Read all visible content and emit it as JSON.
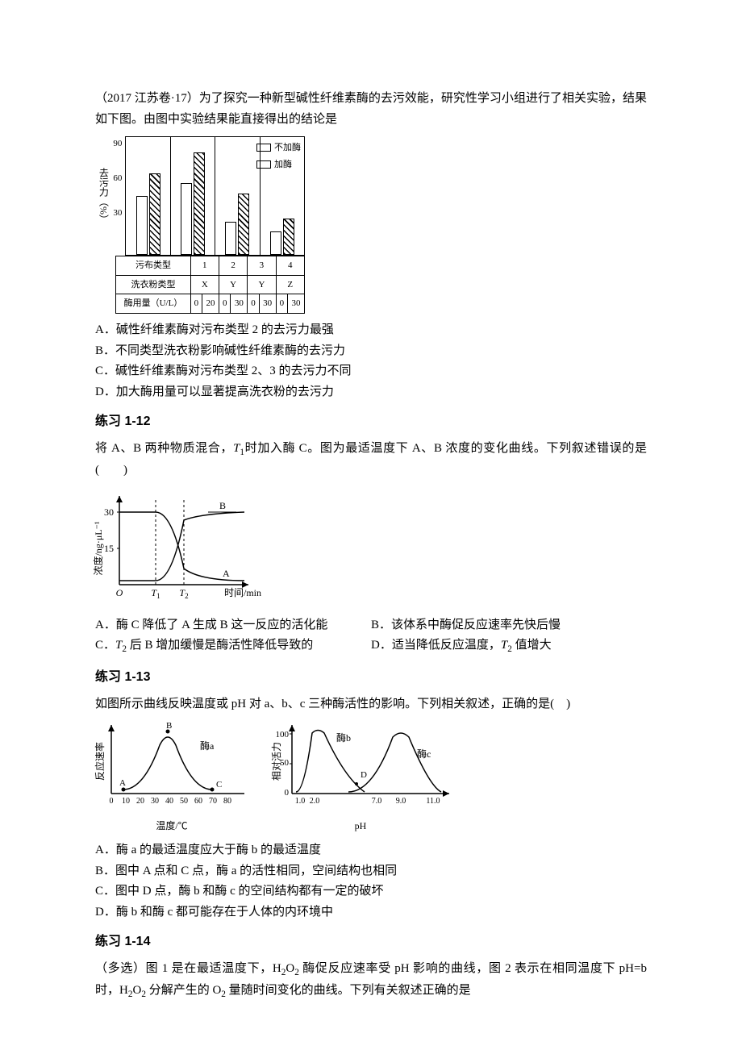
{
  "q1": {
    "intro": "（2017 江苏卷·17）为了探究一种新型碱性纤维素酶的去污效能，研究性学习小组进行了相关实验，结果如下图。由图中实验结果能直接得出的结论是",
    "chart": {
      "type": "bar",
      "ylabel": "去污力（%）",
      "yticks": [
        "90",
        "60",
        "30"
      ],
      "ylim": [
        0,
        90
      ],
      "legend": [
        {
          "swatch": "plain",
          "label": "不加酶"
        },
        {
          "swatch": "hatch",
          "label": "加酶"
        }
      ],
      "groups": [
        {
          "bars": [
            {
              "style": "plain",
              "value": 45
            },
            {
              "style": "hatch",
              "value": 62
            }
          ]
        },
        {
          "bars": [
            {
              "style": "plain",
              "value": 55
            },
            {
              "style": "hatch",
              "value": 78
            }
          ]
        },
        {
          "bars": [
            {
              "style": "plain",
              "value": 25
            },
            {
              "style": "hatch",
              "value": 47
            }
          ]
        },
        {
          "bars": [
            {
              "style": "plain",
              "value": 18
            },
            {
              "style": "hatch",
              "value": 28
            }
          ]
        }
      ],
      "rows": [
        {
          "header": "污布类型",
          "cells": [
            "1",
            "2",
            "3",
            "4"
          ],
          "span": 2
        },
        {
          "header": "洗衣粉类型",
          "cells": [
            "X",
            "Y",
            "Y",
            "Z"
          ],
          "span": 2
        },
        {
          "header": "酶用量（U/L）",
          "cells": [
            "0",
            "20",
            "0",
            "30",
            "0",
            "30",
            "0",
            "30"
          ],
          "span": 1
        }
      ]
    },
    "options": [
      "A．碱性纤维素酶对污布类型 2 的去污力最强",
      "B．不同类型洗衣粉影响碱性纤维素酶的去污力",
      "C．碱性纤维素酶对污布类型 2、3 的去污力不同",
      "D．加大酶用量可以显著提高洗衣粉的去污力"
    ]
  },
  "q2": {
    "title": "练习 1-12",
    "intro_prefix": "将 A、B 两种物质混合，",
    "intro_t1": "T",
    "intro_mid": "时加入酶 C。图为最适温度下 A、B 浓度的变化曲线。下列叙述错误的是(　　)",
    "chart": {
      "type": "line",
      "ylabel": "浓度/ng·μL⁻¹",
      "yticks": [
        "30",
        "15"
      ],
      "xlabel": "时间/min",
      "xticks": [
        "O",
        "T₁",
        "T₂"
      ],
      "line_A": "A",
      "line_B": "B",
      "axis_color": "#000"
    },
    "options": [
      "A．酶 C 降低了 A 生成 B 这一反应的活化能",
      "B．该体系中酶促反应速率先快后慢",
      "C．T₂ 后 B 增加缓慢是酶活性降低导致的",
      "D．适当降低反应温度，T₂ 值增大"
    ]
  },
  "q3": {
    "title": "练习 1-13",
    "intro": "如图所示曲线反映温度或 pH 对 a、b、c 三种酶活性的影响。下列相关叙述，正确的是(　)",
    "chart_left": {
      "ylabel": "反应速率",
      "xlabel": "温度/℃",
      "xticks": [
        "0",
        "10",
        "20",
        "30",
        "40",
        "50",
        "60",
        "70",
        "80"
      ],
      "curve_label": "酶a",
      "points": {
        "A": "A",
        "B": "B",
        "C": "C"
      }
    },
    "chart_right": {
      "ylabel": "相对活力",
      "yticks": [
        "100",
        "50",
        "0"
      ],
      "xlabel": "pH",
      "xticks": [
        "1.0",
        "2.0",
        "7.0",
        "9.0",
        "11.0"
      ],
      "curve_b": "酶b",
      "curve_c": "酶c",
      "point_D": "D"
    },
    "options": [
      "A．酶 a 的最适温度应大于酶 b 的最适温度",
      "B．图中 A 点和 C 点，酶 a 的活性相同，空间结构也相同",
      "C．图中 D 点，酶 b 和酶 c 的空间结构都有一定的破坏",
      "D．酶 b 和酶 c 都可能存在于人体的内环境中"
    ]
  },
  "q4": {
    "title": "练习 1-14",
    "intro": "（多选）图 1 是在最适温度下，H₂O₂ 酶促反应速率受 pH 影响的曲线，图 2 表示在相同温度下 pH=b 时，H₂O₂ 分解产生的 O₂ 量随时间变化的曲线。下列有关叙述正确的是"
  }
}
